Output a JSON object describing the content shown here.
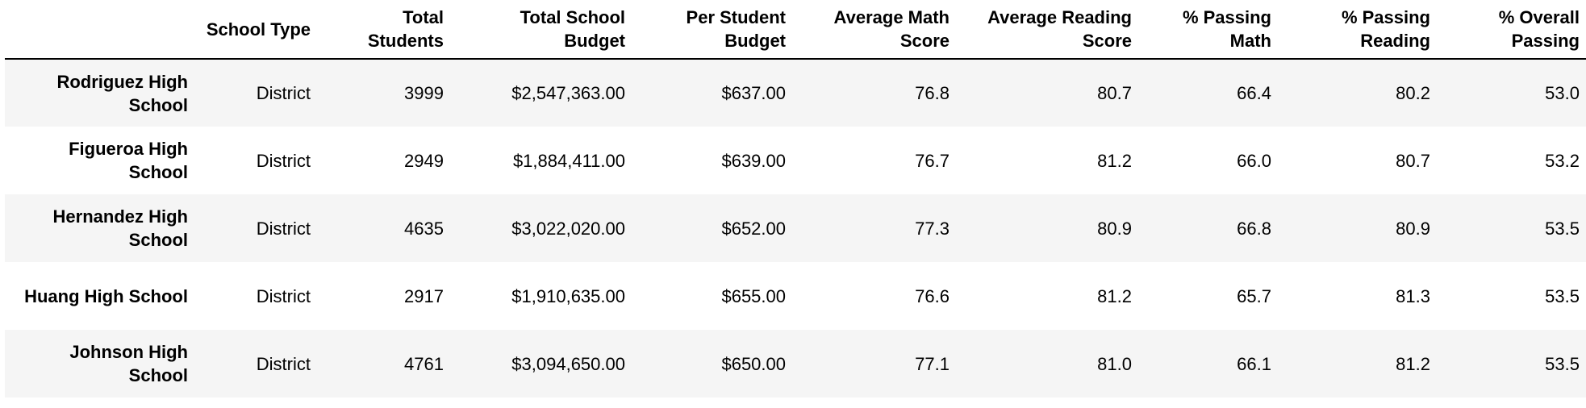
{
  "table": {
    "columns": [
      "",
      "School Type",
      "Total Students",
      "Total School Budget",
      "Per Student Budget",
      "Average Math Score",
      "Average Reading Score",
      "% Passing Math",
      "% Passing Reading",
      "% Overall Passing"
    ],
    "rows": [
      {
        "school": "Rodriguez High School",
        "cells": [
          "District",
          "3999",
          "$2,547,363.00",
          "$637.00",
          "76.8",
          "80.7",
          "66.4",
          "80.2",
          "53.0"
        ]
      },
      {
        "school": "Figueroa High School",
        "cells": [
          "District",
          "2949",
          "$1,884,411.00",
          "$639.00",
          "76.7",
          "81.2",
          "66.0",
          "80.7",
          "53.2"
        ]
      },
      {
        "school": "Hernandez High School",
        "cells": [
          "District",
          "4635",
          "$3,022,020.00",
          "$652.00",
          "77.3",
          "80.9",
          "66.8",
          "80.9",
          "53.5"
        ]
      },
      {
        "school": "Huang High School",
        "cells": [
          "District",
          "2917",
          "$1,910,635.00",
          "$655.00",
          "76.6",
          "81.2",
          "65.7",
          "81.3",
          "53.5"
        ]
      },
      {
        "school": "Johnson High School",
        "cells": [
          "District",
          "4761",
          "$3,094,650.00",
          "$650.00",
          "77.1",
          "81.0",
          "66.1",
          "81.2",
          "53.5"
        ]
      }
    ]
  },
  "colors": {
    "stripe": "#f5f5f5",
    "header_rule": "#000000"
  }
}
